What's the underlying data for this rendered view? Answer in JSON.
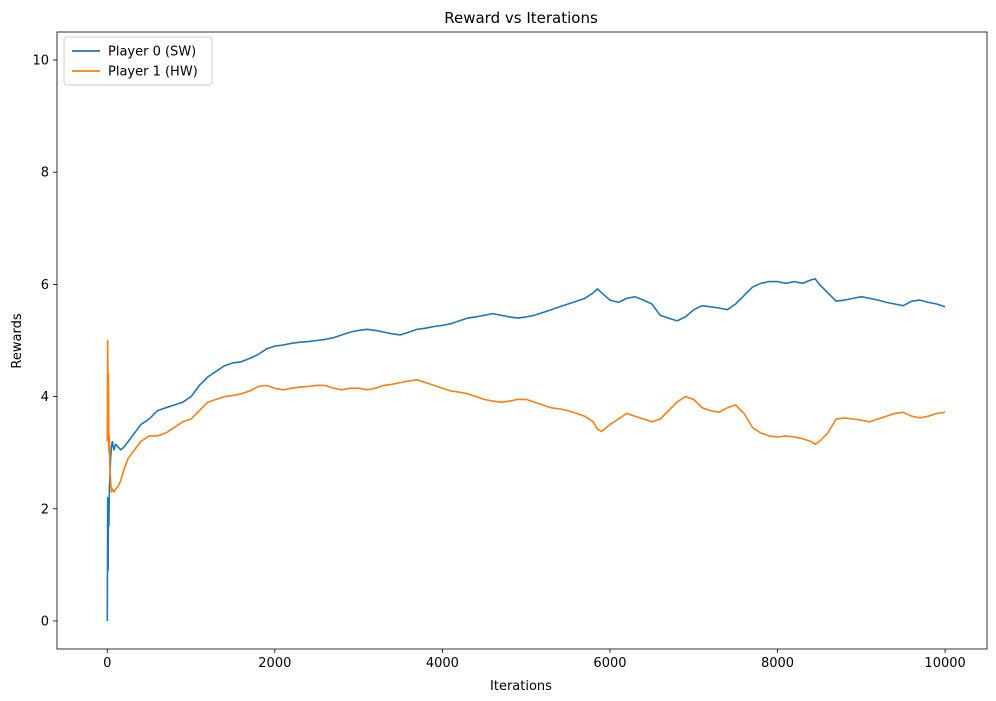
{
  "chart_data": {
    "type": "line",
    "title": "Reward vs Iterations",
    "xlabel": "Iterations",
    "ylabel": "Rewards",
    "xlim": [
      -600,
      10500
    ],
    "ylim": [
      -0.5,
      10.5
    ],
    "xticks": [
      0,
      2000,
      4000,
      6000,
      8000,
      10000
    ],
    "yticks": [
      0,
      2,
      4,
      6,
      8,
      10
    ],
    "grid": false,
    "legend_position": "top-left",
    "series": [
      {
        "name": "Player 0 (SW)",
        "color": "#1f77b4",
        "x": [
          0,
          5,
          10,
          15,
          20,
          25,
          30,
          40,
          50,
          60,
          80,
          100,
          130,
          160,
          200,
          250,
          300,
          350,
          400,
          450,
          500,
          600,
          700,
          800,
          900,
          1000,
          1100,
          1200,
          1300,
          1400,
          1500,
          1600,
          1700,
          1800,
          1900,
          2000,
          2100,
          2200,
          2300,
          2400,
          2500,
          2600,
          2700,
          2800,
          2900,
          3000,
          3100,
          3200,
          3300,
          3400,
          3500,
          3600,
          3700,
          3800,
          3900,
          4000,
          4100,
          4200,
          4300,
          4400,
          4500,
          4600,
          4700,
          4800,
          4900,
          5000,
          5100,
          5200,
          5300,
          5400,
          5500,
          5600,
          5700,
          5800,
          5850,
          5900,
          6000,
          6100,
          6200,
          6300,
          6400,
          6500,
          6600,
          6700,
          6800,
          6900,
          7000,
          7100,
          7200,
          7300,
          7400,
          7500,
          7600,
          7700,
          7800,
          7900,
          8000,
          8100,
          8200,
          8300,
          8400,
          8450,
          8500,
          8600,
          8700,
          8800,
          8900,
          9000,
          9100,
          9200,
          9300,
          9400,
          9500,
          9600,
          9700,
          9800,
          9900,
          10000
        ],
        "y": [
          0,
          2.2,
          0.9,
          2.1,
          1.7,
          2.4,
          2.5,
          2.9,
          3.1,
          3.2,
          3.05,
          3.15,
          3.1,
          3.05,
          3.1,
          3.2,
          3.3,
          3.4,
          3.5,
          3.55,
          3.6,
          3.75,
          3.8,
          3.85,
          3.9,
          4.0,
          4.2,
          4.35,
          4.45,
          4.55,
          4.6,
          4.62,
          4.68,
          4.75,
          4.85,
          4.9,
          4.92,
          4.95,
          4.97,
          4.98,
          5.0,
          5.02,
          5.05,
          5.1,
          5.15,
          5.18,
          5.2,
          5.18,
          5.15,
          5.12,
          5.1,
          5.15,
          5.2,
          5.22,
          5.25,
          5.27,
          5.3,
          5.35,
          5.4,
          5.42,
          5.45,
          5.48,
          5.45,
          5.42,
          5.4,
          5.42,
          5.45,
          5.5,
          5.55,
          5.6,
          5.65,
          5.7,
          5.75,
          5.85,
          5.92,
          5.85,
          5.72,
          5.68,
          5.75,
          5.78,
          5.72,
          5.65,
          5.45,
          5.4,
          5.35,
          5.42,
          5.55,
          5.62,
          5.6,
          5.58,
          5.55,
          5.65,
          5.8,
          5.95,
          6.02,
          6.05,
          6.05,
          6.02,
          6.05,
          6.02,
          6.08,
          6.1,
          6.0,
          5.85,
          5.7,
          5.72,
          5.75,
          5.78,
          5.75,
          5.72,
          5.68,
          5.65,
          5.62,
          5.7,
          5.72,
          5.68,
          5.65,
          5.6
        ]
      },
      {
        "name": "Player 1 (HW)",
        "color": "#ff7f0e",
        "x": [
          0,
          5,
          10,
          15,
          20,
          25,
          30,
          40,
          50,
          60,
          80,
          100,
          130,
          160,
          200,
          250,
          300,
          350,
          400,
          450,
          500,
          600,
          700,
          800,
          900,
          1000,
          1100,
          1200,
          1300,
          1400,
          1500,
          1600,
          1700,
          1800,
          1900,
          2000,
          2100,
          2200,
          2300,
          2400,
          2500,
          2600,
          2700,
          2800,
          2900,
          3000,
          3100,
          3200,
          3300,
          3400,
          3500,
          3600,
          3700,
          3800,
          3900,
          4000,
          4100,
          4200,
          4300,
          4400,
          4500,
          4600,
          4700,
          4800,
          4900,
          5000,
          5100,
          5200,
          5300,
          5400,
          5500,
          5600,
          5700,
          5800,
          5850,
          5900,
          6000,
          6100,
          6200,
          6300,
          6400,
          6500,
          6600,
          6700,
          6800,
          6900,
          7000,
          7100,
          7200,
          7300,
          7400,
          7500,
          7600,
          7700,
          7800,
          7900,
          8000,
          8100,
          8200,
          8300,
          8400,
          8450,
          8500,
          8600,
          8700,
          8800,
          8900,
          9000,
          9100,
          9200,
          9300,
          9400,
          9500,
          9600,
          9700,
          9800,
          9900,
          10000
        ],
        "y": [
          3.2,
          5.0,
          3.5,
          4.4,
          3.0,
          3.3,
          2.8,
          2.5,
          2.3,
          2.35,
          2.3,
          2.35,
          2.4,
          2.5,
          2.7,
          2.9,
          3.0,
          3.1,
          3.2,
          3.25,
          3.3,
          3.3,
          3.35,
          3.45,
          3.55,
          3.6,
          3.75,
          3.9,
          3.95,
          4.0,
          4.02,
          4.05,
          4.1,
          4.18,
          4.2,
          4.15,
          4.12,
          4.15,
          4.17,
          4.18,
          4.2,
          4.2,
          4.15,
          4.12,
          4.15,
          4.15,
          4.12,
          4.15,
          4.2,
          4.22,
          4.25,
          4.28,
          4.3,
          4.25,
          4.2,
          4.15,
          4.1,
          4.08,
          4.05,
          4.0,
          3.95,
          3.92,
          3.9,
          3.92,
          3.95,
          3.95,
          3.9,
          3.85,
          3.8,
          3.78,
          3.75,
          3.7,
          3.65,
          3.55,
          3.42,
          3.38,
          3.5,
          3.6,
          3.7,
          3.65,
          3.6,
          3.55,
          3.6,
          3.75,
          3.9,
          4.0,
          3.95,
          3.8,
          3.75,
          3.72,
          3.8,
          3.85,
          3.7,
          3.45,
          3.35,
          3.3,
          3.28,
          3.3,
          3.28,
          3.25,
          3.2,
          3.15,
          3.2,
          3.35,
          3.6,
          3.62,
          3.6,
          3.58,
          3.55,
          3.6,
          3.65,
          3.7,
          3.72,
          3.65,
          3.62,
          3.65,
          3.7,
          3.72
        ]
      }
    ]
  }
}
